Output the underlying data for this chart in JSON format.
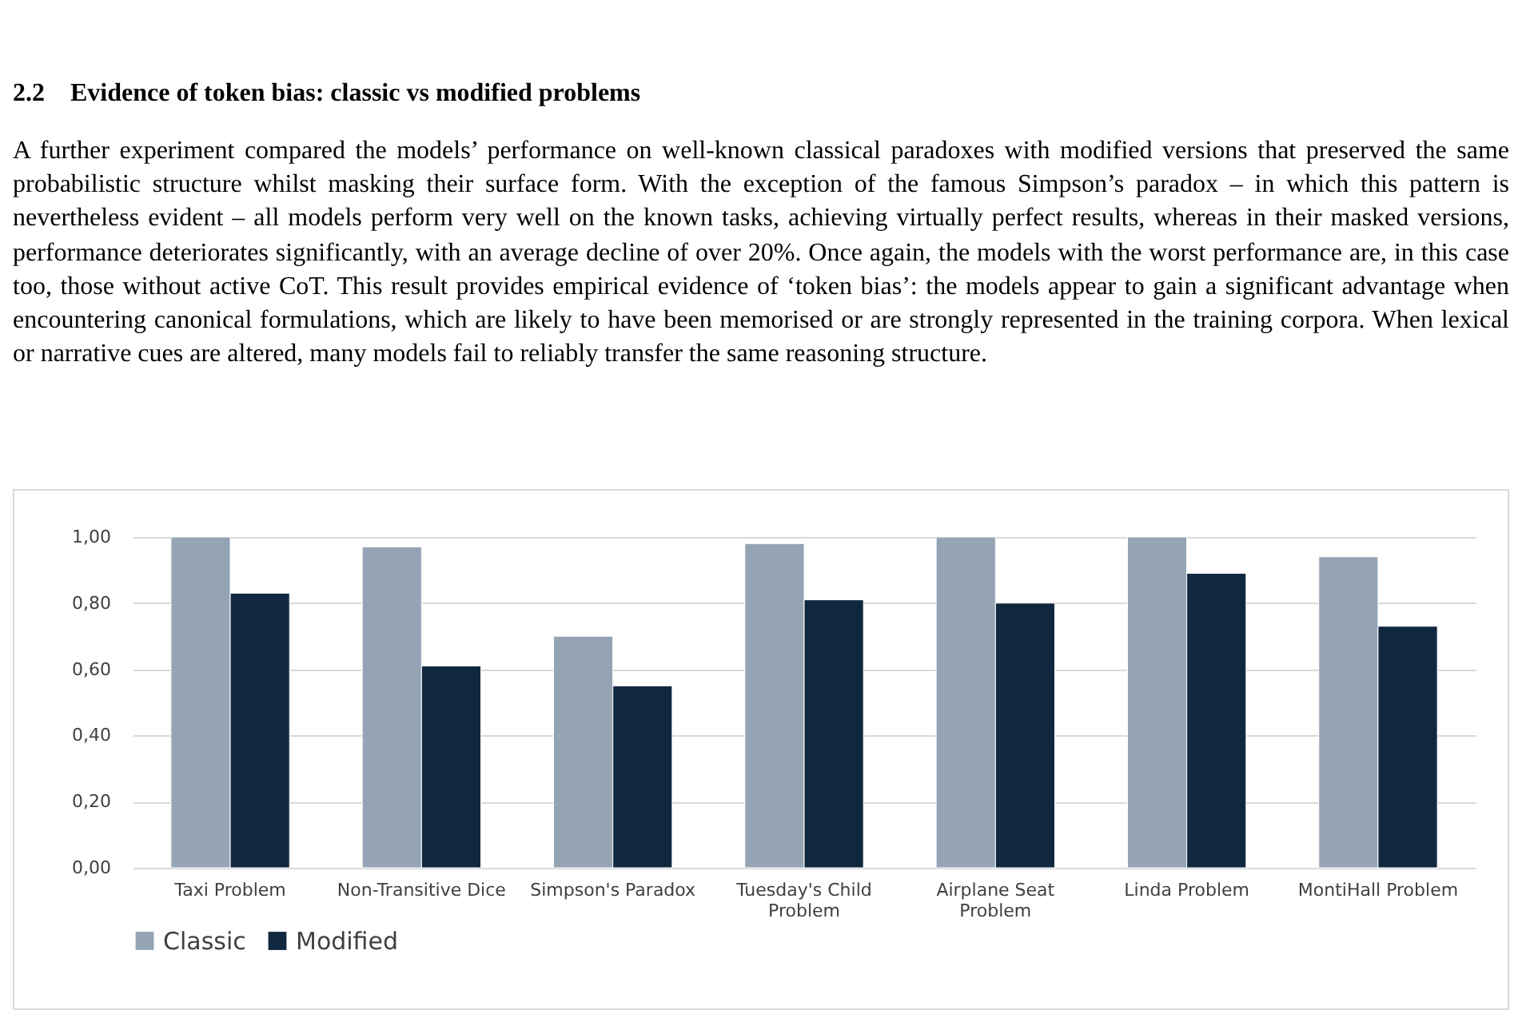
{
  "chart_data": {
    "type": "bar",
    "title": "2.2    Evidence of token bias: classic vs modified problems",
    "annotations": [
      "A further experiment compared the models’ performance on well-known classical paradoxes with modified versions that preserved the same probabilistic structure whilst masking their surface form. With the exception of the famous Simpson’s paradox – in which this pattern is nevertheless evident – all models perform very well on the known tasks, achieving virtually perfect results, whereas in their masked versions, performance deteriorates significantly, with an average decline of over 20%. Once again, the models with the worst performance are, in this case too, those without active CoT. This result provides empirical evidence of ‘token bias’: the models appear to gain a significant advantage when encountering canonical formulations, which are likely to have been memorised or are strongly represented in the training corpora. When lexical or narrative cues are altered, many models fail to reliably transfer the same reasoning structure."
    ],
    "categories": [
      "Taxi Problem",
      "Non-Transitive Dice",
      "Simpson's Paradox",
      "Tuesday's Child Problem",
      "Airplane Seat Problem",
      "Linda Problem",
      "MontiHall Problem"
    ],
    "series": [
      {
        "name": "Classic",
        "color": "#94a4b4",
        "values": [
          1.0,
          0.97,
          0.7,
          0.98,
          1.0,
          1.0,
          0.94
        ]
      },
      {
        "name": "Modified",
        "color": "#10283f",
        "values": [
          0.83,
          0.61,
          0.55,
          0.81,
          0.8,
          0.89,
          0.73
        ]
      }
    ],
    "ylim": [
      0,
      1
    ],
    "yticks": [
      {
        "value": 0,
        "label": "0,00"
      },
      {
        "value": 0.2,
        "label": "0,20"
      },
      {
        "value": 0.4,
        "label": "0,40"
      },
      {
        "value": 0.6,
        "label": "0,60"
      },
      {
        "value": 0.8,
        "label": "0,80"
      },
      {
        "value": 1,
        "label": "1,00"
      }
    ],
    "grid": "y",
    "legend": "bottom"
  }
}
